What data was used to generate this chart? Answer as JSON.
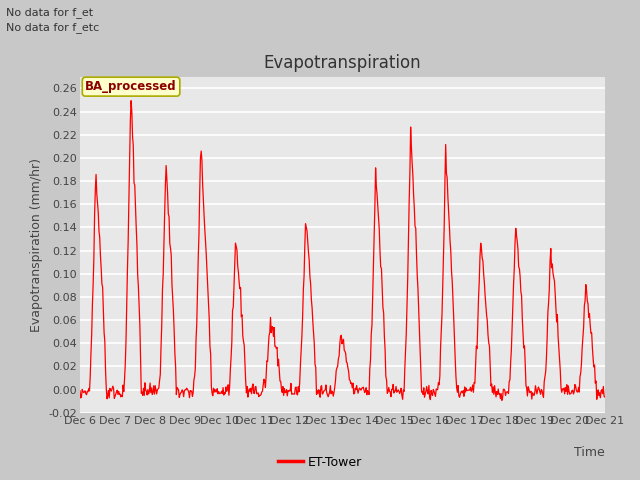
{
  "title": "Evapotranspiration",
  "ylabel": "Evapotranspiration (mm/hr)",
  "xlabel": "Time",
  "text_no_data_1": "No data for f_et",
  "text_no_data_2": "No data for f_etc",
  "legend_label": "ET-Tower",
  "legend_color": "#ff0000",
  "box_label": "BA_processed",
  "box_facecolor": "#ffffcc",
  "box_edgecolor": "#aaaa00",
  "ylim": [
    -0.02,
    0.27
  ],
  "yticks": [
    -0.02,
    0.0,
    0.02,
    0.04,
    0.06,
    0.08,
    0.1,
    0.12,
    0.14,
    0.16,
    0.18,
    0.2,
    0.22,
    0.24,
    0.26
  ],
  "line_color": "#ff0000",
  "fig_bg_color": "#c8c8c8",
  "plot_bg_color": "#e8e8e8",
  "grid_color": "#ffffff",
  "title_fontsize": 12,
  "label_fontsize": 9,
  "tick_fontsize": 8,
  "x_tick_labels": [
    "Dec 6",
    "Dec 7",
    "Dec 8",
    "Dec 9",
    "Dec 10",
    "Dec 11",
    "Dec 12",
    "Dec 13",
    "Dec 14",
    "Dec 15",
    "Dec 16",
    "Dec 17",
    "Dec 18",
    "Dec 19",
    "Dec 20",
    "Dec 21"
  ],
  "day_peaks": [
    0.19,
    0.255,
    0.195,
    0.21,
    0.13,
    0.065,
    0.148,
    0.048,
    0.19,
    0.225,
    0.205,
    0.13,
    0.145,
    0.125,
    0.09
  ]
}
